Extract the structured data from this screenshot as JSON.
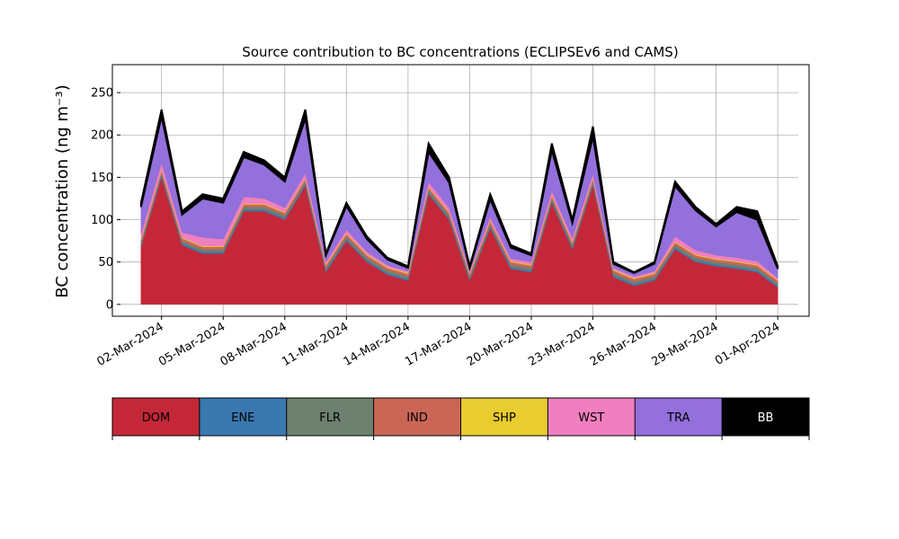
{
  "chart_data": {
    "type": "stacked_area",
    "title": "Source contribution to BC concentrations (ECLIPSEv6 and CAMS)",
    "y_label": "BC concentration (ng m⁻³)",
    "x": [
      "2024-03-01",
      "2024-03-02",
      "2024-03-03",
      "2024-03-04",
      "2024-03-05",
      "2024-03-06",
      "2024-03-07",
      "2024-03-08",
      "2024-03-09",
      "2024-03-10",
      "2024-03-11",
      "2024-03-12",
      "2024-03-13",
      "2024-03-14",
      "2024-03-15",
      "2024-03-16",
      "2024-03-17",
      "2024-03-18",
      "2024-03-19",
      "2024-03-20",
      "2024-03-21",
      "2024-03-22",
      "2024-03-23",
      "2024-03-24",
      "2024-03-25",
      "2024-03-26",
      "2024-03-27",
      "2024-03-28",
      "2024-03-29",
      "2024-03-30",
      "2024-03-31",
      "2024-04-01"
    ],
    "series": [
      {
        "name": "DOM",
        "color": "#c42838",
        "values": [
          68,
          150,
          70,
          60,
          60,
          110,
          110,
          100,
          140,
          38,
          75,
          50,
          35,
          28,
          130,
          100,
          28,
          90,
          42,
          38,
          120,
          65,
          140,
          32,
          22,
          28,
          65,
          50,
          45,
          42,
          38,
          20
        ]
      },
      {
        "name": "ENE",
        "color": "#3a78b0",
        "values": [
          2,
          2,
          2,
          2,
          2,
          2,
          2,
          2,
          2,
          2,
          2,
          2,
          2,
          2,
          2,
          2,
          2,
          2,
          2,
          2,
          2,
          2,
          2,
          2,
          2,
          2,
          2,
          2,
          2,
          2,
          2,
          2
        ]
      },
      {
        "name": "FLR",
        "color": "#6e8070",
        "values": [
          3,
          3,
          3,
          3,
          3,
          3,
          3,
          3,
          3,
          3,
          3,
          3,
          3,
          3,
          3,
          3,
          3,
          3,
          3,
          3,
          3,
          3,
          3,
          3,
          3,
          3,
          3,
          3,
          3,
          3,
          3,
          3
        ]
      },
      {
        "name": "IND",
        "color": "#cb6657",
        "values": [
          3,
          3,
          3,
          3,
          3,
          3,
          3,
          3,
          3,
          3,
          3,
          3,
          3,
          3,
          3,
          3,
          3,
          3,
          3,
          3,
          3,
          3,
          3,
          3,
          3,
          3,
          3,
          3,
          3,
          3,
          3,
          3
        ]
      },
      {
        "name": "SHP",
        "color": "#e8cc30",
        "values": [
          1,
          1,
          1,
          1,
          1,
          1,
          1,
          1,
          1,
          1,
          1,
          1,
          1,
          1,
          1,
          1,
          1,
          1,
          1,
          1,
          1,
          1,
          1,
          1,
          1,
          1,
          1,
          1,
          1,
          1,
          1,
          1
        ]
      },
      {
        "name": "WST",
        "color": "#f07fbf",
        "values": [
          6,
          8,
          6,
          10,
          8,
          8,
          6,
          5,
          6,
          3,
          4,
          3,
          2,
          2,
          5,
          5,
          2,
          4,
          3,
          3,
          5,
          4,
          5,
          2,
          2,
          2,
          6,
          5,
          4,
          4,
          4,
          2
        ]
      },
      {
        "name": "TRA",
        "color": "#9370db",
        "values": [
          32,
          55,
          21,
          46,
          43,
          47,
          40,
          31,
          65,
          8,
          28,
          15,
          7,
          4,
          36,
          30,
          4,
          21,
          13,
          8,
          48,
          18,
          44,
          5,
          4,
          9,
          60,
          47,
          34,
          54,
          49,
          11
        ]
      },
      {
        "name": "BB",
        "color": "#000000",
        "values": [
          5,
          8,
          4,
          5,
          5,
          6,
          5,
          5,
          10,
          2,
          4,
          3,
          2,
          2,
          10,
          6,
          2,
          6,
          3,
          2,
          8,
          4,
          12,
          2,
          1,
          2,
          5,
          4,
          3,
          6,
          10,
          3
        ]
      }
    ],
    "xlim": [
      "2024-02-29",
      "2024-04-02"
    ],
    "xticks": [
      {
        "value": "2024-03-02",
        "label": "02-Mar-2024"
      },
      {
        "value": "2024-03-05",
        "label": "05-Mar-2024"
      },
      {
        "value": "2024-03-08",
        "label": "08-Mar-2024"
      },
      {
        "value": "2024-03-11",
        "label": "11-Mar-2024"
      },
      {
        "value": "2024-03-14",
        "label": "14-Mar-2024"
      },
      {
        "value": "2024-03-17",
        "label": "17-Mar-2024"
      },
      {
        "value": "2024-03-20",
        "label": "20-Mar-2024"
      },
      {
        "value": "2024-03-23",
        "label": "23-Mar-2024"
      },
      {
        "value": "2024-03-26",
        "label": "26-Mar-2024"
      },
      {
        "value": "2024-03-29",
        "label": "29-Mar-2024"
      },
      {
        "value": "2024-04-01",
        "label": "01-Apr-2024"
      }
    ],
    "ylim": [
      -14,
      283
    ],
    "yticks": [
      0,
      50,
      100,
      150,
      200,
      250
    ],
    "grid": true
  }
}
